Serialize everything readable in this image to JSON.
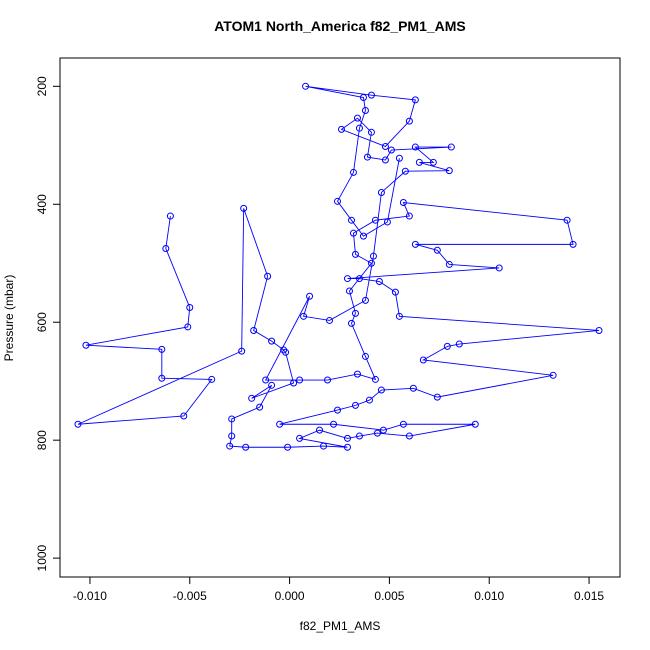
{
  "chart_data": {
    "type": "line",
    "title": "ATOM1 North_America f82_PM1_AMS",
    "x_label": "f82_PM1_AMS",
    "y_label": "Pressure (mbar)",
    "color": "#0000ff",
    "markers": true,
    "xlim": [
      -0.0115,
      0.01655
    ],
    "ylim": [
      1032,
      152
    ],
    "xticks": [
      {
        "value": -0.01,
        "label": "-0.010"
      },
      -0.005,
      {
        "value": 0,
        "label": "0.000"
      },
      0.005,
      {
        "value": 0.01,
        "label": "0.010"
      },
      0.015
    ],
    "yticks": [
      200,
      400,
      600,
      800,
      1000
    ],
    "x": [
      -0.00597,
      -0.0062,
      -0.005,
      -0.0051,
      -0.0102,
      -0.0064,
      -0.0064,
      -0.0039,
      -0.0053,
      -0.0106,
      -0.0024,
      -0.0023,
      -0.0011,
      -0.0018,
      -0.0009,
      -0.0003,
      -0.0002,
      0.0002,
      -0.0019,
      -0.0009,
      -0.0015,
      -0.0029,
      -0.0029,
      -0.003,
      -0.0022,
      -0.0001,
      0.0017,
      0.0029,
      0.0005,
      0.0015,
      0.0029,
      0.0035,
      0.0044,
      0.006,
      0.0093,
      0.0057,
      0.0047,
      0.0022,
      -0.0005,
      0.0024,
      0.0033,
      0.004,
      0.0046,
      0.0062,
      0.0074,
      0.0132,
      0.0067,
      0.0079,
      0.0085,
      0.0155,
      0.0055,
      0.0053,
      0.0045,
      0.0035,
      0.0029,
      0.0105,
      0.008,
      0.0074,
      0.0063,
      0.0142,
      0.0139,
      0.0057,
      0.006,
      0.0043,
      0.0032,
      0.0033,
      0.0041,
      0.003,
      0.0033,
      0.0031,
      0.0038,
      0.0043,
      0.0034,
      0.0019,
      0.0005,
      -0.0012,
      0.001,
      0.0007,
      0.002,
      0.0038,
      0.0042,
      0.0046,
      0.0058,
      0.008,
      0.0065,
      0.0072,
      0.0063,
      0.0081,
      0.0051,
      0.0048,
      0.0039,
      0.0041,
      0.0034,
      0.0026,
      0.0048,
      0.006,
      0.0063,
      0.0041,
      0.0008,
      0.0037,
      0.0038,
      0.0035,
      0.0032,
      0.0024,
      0.0031,
      0.0037,
      0.0049,
      0.0055
    ],
    "values": [
      420,
      475,
      575,
      608,
      639,
      646,
      695,
      697,
      759,
      773,
      649,
      407,
      522,
      614,
      632,
      647,
      651,
      703,
      729,
      707,
      744,
      764,
      793,
      810,
      812,
      812,
      810,
      812,
      797,
      783,
      797,
      793,
      788,
      793,
      773,
      773,
      783,
      773,
      773,
      749,
      741,
      732,
      715,
      712,
      727,
      690,
      664,
      641,
      637,
      614,
      590,
      549,
      531,
      526,
      526,
      508,
      502,
      478,
      468,
      468,
      427,
      397,
      420,
      427,
      449,
      485,
      500,
      547,
      585,
      602,
      658,
      697,
      688,
      698,
      698,
      698,
      556,
      590,
      597,
      563,
      488,
      380,
      344,
      343,
      329,
      329,
      303,
      303,
      308,
      325,
      320,
      278,
      254,
      273,
      302,
      259,
      223,
      215,
      200,
      219,
      241,
      271,
      346,
      395,
      427,
      454,
      430,
      322
    ]
  }
}
